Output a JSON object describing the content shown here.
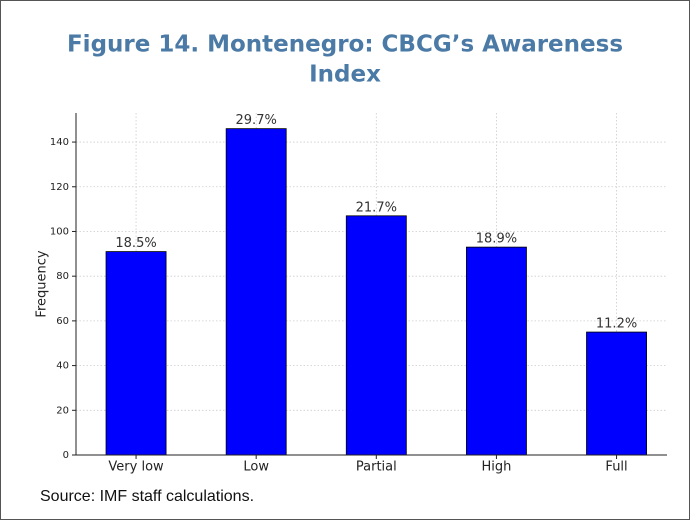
{
  "chart_data": {
    "type": "bar",
    "title": "Figure 14. Montenegro: CBCG’s Awareness",
    "title_line2": "Index",
    "categories": [
      "Very low",
      "Low",
      "Partial",
      "High",
      "Full"
    ],
    "values": [
      91,
      146,
      107,
      93,
      55
    ],
    "bar_labels": [
      "18.5%",
      "29.7%",
      "21.7%",
      "18.9%",
      "11.2%"
    ],
    "color": "#0000ff",
    "ylabel": "Frequency",
    "ylim": [
      0,
      153
    ],
    "yticks": [
      0,
      20,
      40,
      60,
      80,
      100,
      120,
      140
    ],
    "grid": true,
    "source": "Source: IMF staff calculations."
  }
}
